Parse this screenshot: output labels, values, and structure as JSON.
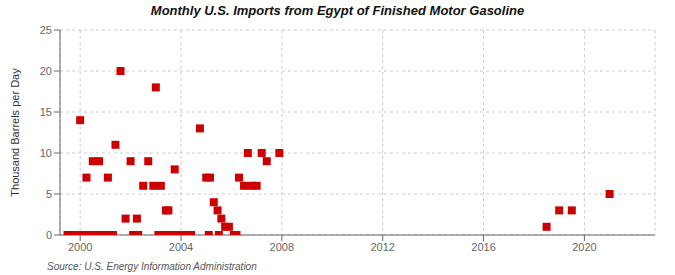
{
  "chart_data": {
    "type": "scatter",
    "title": "Monthly U.S. Imports from Egypt of Finished Motor Gasoline",
    "ylabel": "Thousand Barrels per Day",
    "annotations": [
      "Source: U.S. Energy Information Administration"
    ],
    "color": "#cc0000",
    "marker": "square",
    "grid": true,
    "xlim": [
      1999.2,
      2022.8
    ],
    "ylim": [
      0,
      25
    ],
    "xticks": [
      2000,
      2004,
      2008,
      2012,
      2016,
      2020
    ],
    "yticks": [
      0,
      5,
      10,
      15,
      20,
      25
    ],
    "x": [
      2000.0,
      2000.25,
      2000.5,
      2000.75,
      2001.1,
      2001.4,
      2001.6,
      2001.8,
      2002.0,
      2002.25,
      2002.5,
      2002.7,
      2002.9,
      2003.0,
      2003.2,
      2003.4,
      2003.5,
      2003.75,
      2004.75,
      2005.0,
      2005.15,
      2005.3,
      2005.45,
      2005.6,
      2005.75,
      2005.9,
      2006.3,
      2006.5,
      2006.65,
      2006.8,
      2007.0,
      2007.2,
      2007.4,
      2007.9,
      1999.5,
      1999.7,
      1999.9,
      2000.1,
      2000.3,
      2000.6,
      2000.8,
      2001.0,
      2001.2,
      2001.3,
      2002.1,
      2002.3,
      2003.1,
      2003.3,
      2003.6,
      2003.8,
      2004.0,
      2004.2,
      2004.4,
      2005.1,
      2005.5,
      2006.1,
      2006.2,
      2018.5,
      2019.0,
      2019.5,
      2021.0
    ],
    "values": [
      14,
      7,
      9,
      9,
      7,
      11,
      20,
      2,
      9,
      2,
      6,
      9,
      6,
      18,
      6,
      3,
      3,
      8,
      13,
      7,
      7,
      4,
      3,
      2,
      1,
      1,
      7,
      6,
      10,
      6,
      6,
      10,
      9,
      10,
      0,
      0,
      0,
      0,
      0,
      0,
      0,
      0,
      0,
      0,
      0,
      0,
      0,
      0,
      0,
      0,
      0,
      0,
      0,
      0,
      0,
      0,
      0,
      1,
      3,
      3,
      5
    ]
  }
}
